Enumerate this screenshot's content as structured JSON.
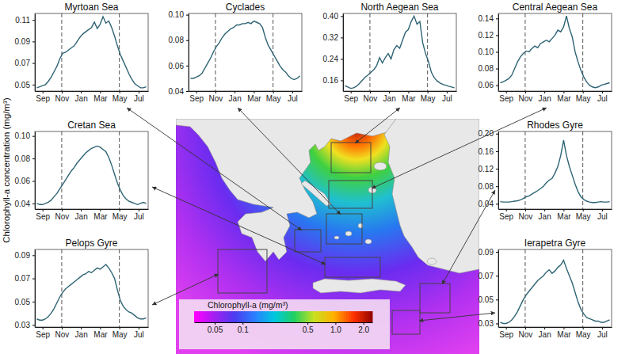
{
  "ylabel": "Chlorophyll-a concentration (mg/m³)",
  "chart_data": [
    {
      "type": "line",
      "title": "Myrtoan Sea",
      "x": [
        0.4,
        0.7,
        1.0,
        1.3,
        1.6,
        1.9,
        2.2,
        2.5,
        2.8,
        3.1,
        3.4,
        3.7,
        4.0,
        4.3,
        4.6,
        4.9,
        5.2,
        5.5,
        5.8,
        6.1,
        6.4,
        6.7,
        7.0,
        7.3,
        7.6,
        7.9,
        8.2,
        8.5,
        8.8,
        9.1,
        9.4,
        9.7,
        10.0,
        10.3,
        10.6,
        10.9,
        11.2,
        11.5,
        11.8
      ],
      "xlim": [
        0.2,
        12.0
      ],
      "xticks": [
        {
          "value": 1,
          "label": "Sep"
        },
        {
          "value": 3,
          "label": "Nov"
        },
        {
          "value": 5,
          "label": "Jan"
        },
        {
          "value": 7,
          "label": "Mar"
        },
        {
          "value": 9,
          "label": "May"
        },
        {
          "value": 11,
          "label": "Jul"
        }
      ],
      "ylim": [
        0.044,
        0.116
      ],
      "yticks": [
        0.05,
        0.07,
        0.09,
        0.11
      ],
      "vlines": [
        3,
        9
      ],
      "series": [
        {
          "color": "#2e6474",
          "values": [
            0.047,
            0.048,
            0.049,
            0.05,
            0.053,
            0.057,
            0.062,
            0.067,
            0.074,
            0.079,
            0.08,
            0.082,
            0.084,
            0.086,
            0.09,
            0.094,
            0.097,
            0.099,
            0.101,
            0.103,
            0.108,
            0.102,
            0.106,
            0.113,
            0.107,
            0.109,
            0.103,
            0.095,
            0.086,
            0.078,
            0.072,
            0.066,
            0.06,
            0.055,
            0.051,
            0.049,
            0.047,
            0.047,
            0.048
          ]
        }
      ]
    },
    {
      "type": "line",
      "title": "Cyclades",
      "x": [
        0.4,
        0.7,
        1.0,
        1.3,
        1.6,
        1.9,
        2.2,
        2.5,
        2.8,
        3.1,
        3.4,
        3.7,
        4.0,
        4.3,
        4.6,
        4.9,
        5.2,
        5.5,
        5.8,
        6.1,
        6.4,
        6.7,
        7.0,
        7.3,
        7.6,
        7.9,
        8.2,
        8.5,
        8.8,
        9.1,
        9.4,
        9.7,
        10.0,
        10.3,
        10.6,
        10.9,
        11.2,
        11.5,
        11.8
      ],
      "xlim": [
        0.2,
        12.0
      ],
      "xticks": [
        {
          "value": 1,
          "label": "Sep"
        },
        {
          "value": 3,
          "label": "Nov"
        },
        {
          "value": 5,
          "label": "Jan"
        },
        {
          "value": 7,
          "label": "Mar"
        },
        {
          "value": 9,
          "label": "May"
        },
        {
          "value": 11,
          "label": "Jul"
        }
      ],
      "ylim": [
        0.04,
        0.101
      ],
      "yticks": [
        0.04,
        0.06,
        0.08,
        {
          "value": 0.1,
          "label": "0.10"
        }
      ],
      "vlines": [
        3,
        9
      ],
      "series": [
        {
          "color": "#2e6474",
          "values": [
            0.05,
            0.05,
            0.051,
            0.052,
            0.054,
            0.058,
            0.062,
            0.066,
            0.071,
            0.075,
            0.078,
            0.082,
            0.085,
            0.087,
            0.089,
            0.09,
            0.092,
            0.092,
            0.093,
            0.093,
            0.094,
            0.093,
            0.095,
            0.094,
            0.093,
            0.09,
            0.082,
            0.076,
            0.072,
            0.068,
            0.064,
            0.06,
            0.057,
            0.055,
            0.052,
            0.05,
            0.049,
            0.05,
            0.052
          ]
        }
      ]
    },
    {
      "type": "line",
      "title": "North Aegean Sea",
      "x": [
        0.4,
        0.7,
        1.0,
        1.3,
        1.6,
        1.9,
        2.2,
        2.5,
        2.8,
        3.1,
        3.4,
        3.7,
        4.0,
        4.3,
        4.6,
        4.9,
        5.2,
        5.5,
        5.8,
        6.1,
        6.4,
        6.7,
        7.0,
        7.3,
        7.6,
        7.9,
        8.2,
        8.5,
        8.8,
        9.1,
        9.4,
        9.7,
        10.0,
        10.3,
        10.6,
        10.9,
        11.2,
        11.5,
        11.8
      ],
      "xlim": [
        0.2,
        12.0
      ],
      "xticks": [
        {
          "value": 1,
          "label": "Sep"
        },
        {
          "value": 3,
          "label": "Nov"
        },
        {
          "value": 5,
          "label": "Jan"
        },
        {
          "value": 7,
          "label": "Mar"
        },
        {
          "value": 9,
          "label": "May"
        },
        {
          "value": 11,
          "label": "Jul"
        }
      ],
      "ylim": [
        0.12,
        0.41
      ],
      "yticks": [
        0.16,
        0.24,
        0.32,
        {
          "value": 0.4,
          "label": "0.40"
        }
      ],
      "vlines": [
        3,
        9
      ],
      "series": [
        {
          "color": "#2e6474",
          "values": [
            0.14,
            0.135,
            0.13,
            0.132,
            0.138,
            0.148,
            0.16,
            0.172,
            0.18,
            0.19,
            0.2,
            0.215,
            0.245,
            0.225,
            0.245,
            0.26,
            0.24,
            0.275,
            0.29,
            0.28,
            0.31,
            0.34,
            0.35,
            0.38,
            0.4,
            0.37,
            0.38,
            0.3,
            0.26,
            0.23,
            0.19,
            0.17,
            0.158,
            0.15,
            0.145,
            0.142,
            0.138,
            0.135,
            0.132
          ]
        }
      ]
    },
    {
      "type": "line",
      "title": "Central Aegean Sea",
      "x": [
        0.4,
        0.7,
        1.0,
        1.3,
        1.6,
        1.9,
        2.2,
        2.5,
        2.8,
        3.1,
        3.4,
        3.7,
        4.0,
        4.3,
        4.6,
        4.9,
        5.2,
        5.5,
        5.8,
        6.1,
        6.4,
        6.7,
        7.0,
        7.3,
        7.6,
        7.9,
        8.2,
        8.5,
        8.8,
        9.1,
        9.4,
        9.7,
        10.0,
        10.3,
        10.6,
        10.9,
        11.2,
        11.5,
        11.8
      ],
      "xlim": [
        0.2,
        12.0
      ],
      "xticks": [
        {
          "value": 1,
          "label": "Sep"
        },
        {
          "value": 3,
          "label": "Nov"
        },
        {
          "value": 5,
          "label": "Jan"
        },
        {
          "value": 7,
          "label": "Mar"
        },
        {
          "value": 9,
          "label": "May"
        },
        {
          "value": 11,
          "label": "Jul"
        }
      ],
      "ylim": [
        0.053,
        0.146
      ],
      "yticks": [
        0.06,
        0.08,
        {
          "value": 0.1,
          "label": "0.10"
        },
        0.12,
        0.14
      ],
      "vlines": [
        3,
        9
      ],
      "series": [
        {
          "color": "#2e6474",
          "values": [
            0.063,
            0.064,
            0.066,
            0.068,
            0.072,
            0.08,
            0.088,
            0.094,
            0.098,
            0.101,
            0.1,
            0.104,
            0.107,
            0.105,
            0.11,
            0.112,
            0.114,
            0.112,
            0.116,
            0.12,
            0.126,
            0.124,
            0.13,
            0.143,
            0.128,
            0.118,
            0.1,
            0.088,
            0.078,
            0.07,
            0.064,
            0.06,
            0.058,
            0.057,
            0.058,
            0.06,
            0.061,
            0.062,
            0.063
          ]
        }
      ]
    },
    {
      "type": "line",
      "title": "Cretan Sea",
      "x": [
        0.4,
        0.7,
        1.0,
        1.3,
        1.6,
        1.9,
        2.2,
        2.5,
        2.8,
        3.1,
        3.4,
        3.7,
        4.0,
        4.3,
        4.6,
        4.9,
        5.2,
        5.5,
        5.8,
        6.1,
        6.4,
        6.7,
        7.0,
        7.3,
        7.6,
        7.9,
        8.2,
        8.5,
        8.8,
        9.1,
        9.4,
        9.7,
        10.0,
        10.3,
        10.6,
        10.9,
        11.2,
        11.5,
        11.8
      ],
      "xlim": [
        0.2,
        12.0
      ],
      "xticks": [
        {
          "value": 1,
          "label": "Sep"
        },
        {
          "value": 3,
          "label": "Nov"
        },
        {
          "value": 5,
          "label": "Jan"
        },
        {
          "value": 7,
          "label": "Mar"
        },
        {
          "value": 9,
          "label": "May"
        },
        {
          "value": 11,
          "label": "Jul"
        }
      ],
      "ylim": [
        0.035,
        0.104
      ],
      "yticks": [
        0.04,
        0.06,
        0.08,
        {
          "value": 0.1,
          "label": "0.10"
        }
      ],
      "vlines": [
        3,
        9
      ],
      "series": [
        {
          "color": "#2e6474",
          "values": [
            0.04,
            0.039,
            0.039,
            0.04,
            0.041,
            0.043,
            0.046,
            0.049,
            0.053,
            0.057,
            0.061,
            0.065,
            0.069,
            0.072,
            0.076,
            0.079,
            0.082,
            0.085,
            0.087,
            0.089,
            0.09,
            0.091,
            0.09,
            0.088,
            0.086,
            0.081,
            0.074,
            0.066,
            0.058,
            0.052,
            0.047,
            0.044,
            0.042,
            0.041,
            0.04,
            0.039,
            0.04,
            0.041,
            0.04
          ]
        }
      ]
    },
    {
      "type": "line",
      "title": "Pelops Gyre",
      "x": [
        0.4,
        0.7,
        1.0,
        1.3,
        1.6,
        1.9,
        2.2,
        2.5,
        2.8,
        3.1,
        3.4,
        3.7,
        4.0,
        4.3,
        4.6,
        4.9,
        5.2,
        5.5,
        5.8,
        6.1,
        6.4,
        6.7,
        7.0,
        7.3,
        7.6,
        7.9,
        8.2,
        8.5,
        8.8,
        9.1,
        9.4,
        9.7,
        10.0,
        10.3,
        10.6,
        10.9,
        11.2,
        11.5,
        11.8
      ],
      "xlim": [
        0.2,
        12.0
      ],
      "xticks": [
        {
          "value": 1,
          "label": "Sep"
        },
        {
          "value": 3,
          "label": "Nov"
        },
        {
          "value": 5,
          "label": "Jan"
        },
        {
          "value": 7,
          "label": "Mar"
        },
        {
          "value": 9,
          "label": "May"
        },
        {
          "value": 11,
          "label": "Jul"
        }
      ],
      "ylim": [
        0.028,
        0.095
      ],
      "yticks": [
        0.03,
        0.05,
        0.07,
        0.09
      ],
      "vlines": [
        3,
        9
      ],
      "series": [
        {
          "color": "#2e6474",
          "values": [
            0.035,
            0.034,
            0.034,
            0.035,
            0.037,
            0.04,
            0.044,
            0.049,
            0.054,
            0.058,
            0.061,
            0.063,
            0.065,
            0.067,
            0.069,
            0.071,
            0.073,
            0.074,
            0.076,
            0.075,
            0.077,
            0.079,
            0.078,
            0.08,
            0.082,
            0.079,
            0.075,
            0.07,
            0.06,
            0.051,
            0.046,
            0.043,
            0.041,
            0.04,
            0.038,
            0.036,
            0.035,
            0.035,
            0.036
          ]
        }
      ]
    },
    {
      "type": "line",
      "title": "Rhodes Gyre",
      "x": [
        0.4,
        0.7,
        1.0,
        1.3,
        1.6,
        1.9,
        2.2,
        2.5,
        2.8,
        3.1,
        3.4,
        3.7,
        4.0,
        4.3,
        4.6,
        4.9,
        5.2,
        5.5,
        5.8,
        6.1,
        6.4,
        6.7,
        7.0,
        7.3,
        7.6,
        7.9,
        8.2,
        8.5,
        8.8,
        9.1,
        9.4,
        9.7,
        10.0,
        10.3,
        10.6,
        10.9,
        11.2,
        11.5,
        11.8
      ],
      "xlim": [
        0.2,
        12.0
      ],
      "xticks": [
        {
          "value": 1,
          "label": "Sep"
        },
        {
          "value": 3,
          "label": "Nov"
        },
        {
          "value": 5,
          "label": "Jan"
        },
        {
          "value": 7,
          "label": "Mar"
        },
        {
          "value": 9,
          "label": "May"
        },
        {
          "value": 11,
          "label": "Jul"
        }
      ],
      "ylim": [
        0.028,
        0.205
      ],
      "yticks": [
        0.04,
        0.08,
        0.12,
        0.16,
        {
          "value": 0.2,
          "label": "0.20"
        }
      ],
      "vlines": [
        3,
        9
      ],
      "series": [
        {
          "color": "#2e6474",
          "values": [
            0.045,
            0.044,
            0.044,
            0.044,
            0.045,
            0.046,
            0.047,
            0.049,
            0.052,
            0.056,
            0.058,
            0.062,
            0.066,
            0.07,
            0.075,
            0.08,
            0.088,
            0.094,
            0.098,
            0.11,
            0.125,
            0.15,
            0.185,
            0.15,
            0.125,
            0.105,
            0.085,
            0.068,
            0.056,
            0.05,
            0.046,
            0.044,
            0.043,
            0.043,
            0.044,
            0.045,
            0.044,
            0.044,
            0.045
          ]
        }
      ]
    },
    {
      "type": "line",
      "title": "Ierapetra Gyre",
      "x": [
        0.4,
        0.7,
        1.0,
        1.3,
        1.6,
        1.9,
        2.2,
        2.5,
        2.8,
        3.1,
        3.4,
        3.7,
        4.0,
        4.3,
        4.6,
        4.9,
        5.2,
        5.5,
        5.8,
        6.1,
        6.4,
        6.7,
        7.0,
        7.3,
        7.6,
        7.9,
        8.2,
        8.5,
        8.8,
        9.1,
        9.4,
        9.7,
        10.0,
        10.3,
        10.6,
        10.9,
        11.2,
        11.5,
        11.8
      ],
      "xlim": [
        0.2,
        12.0
      ],
      "xticks": [
        {
          "value": 1,
          "label": "Sep"
        },
        {
          "value": 3,
          "label": "Nov"
        },
        {
          "value": 5,
          "label": "Jan"
        },
        {
          "value": 7,
          "label": "Mar"
        },
        {
          "value": 9,
          "label": "May"
        },
        {
          "value": 11,
          "label": "Jul"
        }
      ],
      "ylim": [
        0.027,
        0.092
      ],
      "yticks": [
        0.03,
        0.05,
        0.07,
        0.09
      ],
      "vlines": [
        3,
        9
      ],
      "series": [
        {
          "color": "#2e6474",
          "values": [
            0.031,
            0.03,
            0.03,
            0.031,
            0.033,
            0.036,
            0.04,
            0.045,
            0.05,
            0.054,
            0.057,
            0.06,
            0.063,
            0.066,
            0.068,
            0.07,
            0.073,
            0.075,
            0.072,
            0.074,
            0.077,
            0.079,
            0.083,
            0.076,
            0.07,
            0.064,
            0.056,
            0.048,
            0.042,
            0.038,
            0.035,
            0.034,
            0.033,
            0.032,
            0.032,
            0.031,
            0.031,
            0.032,
            0.033
          ]
        }
      ]
    }
  ],
  "map": {
    "colorbar": {
      "label": "Chlorophyll-a (mg/m³)",
      "range": [
        0.03,
        2.5
      ],
      "log": true,
      "ticks": [
        0.05,
        0.1,
        0.5,
        {
          "value": 1,
          "label": "1.0"
        },
        {
          "value": 2,
          "label": "2.0"
        }
      ]
    }
  }
}
